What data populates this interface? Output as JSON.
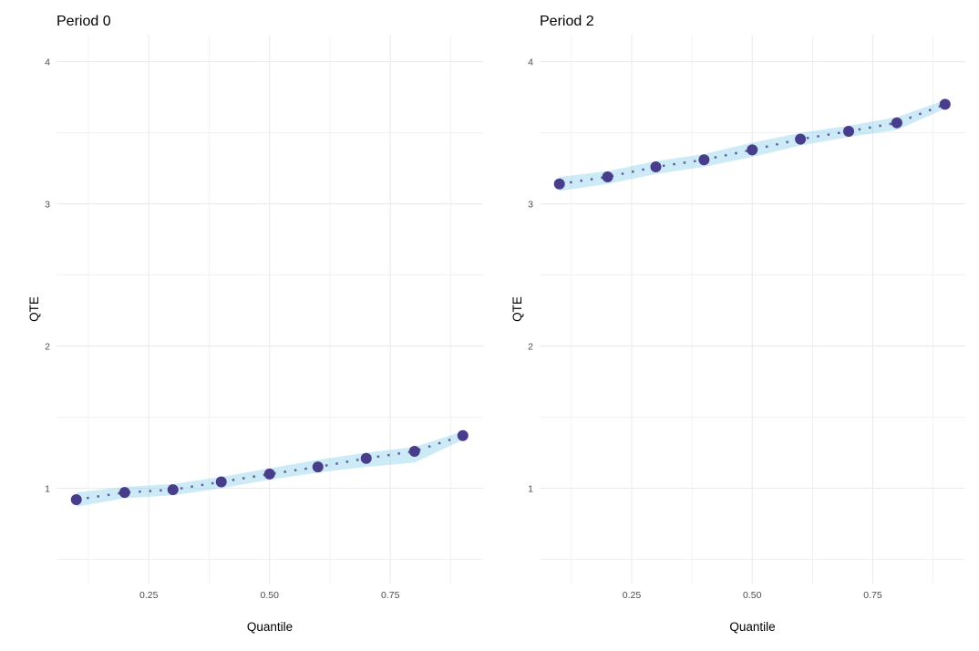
{
  "chart_data": [
    {
      "type": "line",
      "title": "Period 0",
      "xlabel": "Quantile",
      "ylabel": "QTE",
      "xlim": [
        0.059,
        0.942
      ],
      "ylim": [
        0.33,
        4.19
      ],
      "xticks": [
        "0.25",
        "0.50",
        "0.75"
      ],
      "xtick_values": [
        0.25,
        0.5,
        0.75
      ],
      "yticks": [
        "1",
        "2",
        "3",
        "4"
      ],
      "ytick_values": [
        1,
        2,
        3,
        4
      ],
      "grid": true,
      "x": [
        0.1,
        0.2,
        0.3,
        0.4,
        0.5,
        0.6,
        0.7,
        0.8,
        0.9
      ],
      "y": [
        0.92,
        0.97,
        0.99,
        1.045,
        1.1,
        1.15,
        1.21,
        1.26,
        1.37
      ],
      "lower": [
        0.87,
        0.93,
        0.95,
        1.0,
        1.06,
        1.11,
        1.15,
        1.18,
        1.34
      ],
      "upper": [
        0.97,
        1.01,
        1.03,
        1.08,
        1.14,
        1.2,
        1.25,
        1.29,
        1.4
      ]
    },
    {
      "type": "line",
      "title": "Period 2",
      "xlabel": "Quantile",
      "ylabel": "QTE",
      "xlim": [
        0.059,
        0.942
      ],
      "ylim": [
        0.33,
        4.19
      ],
      "xticks": [
        "0.25",
        "0.50",
        "0.75"
      ],
      "xtick_values": [
        0.25,
        0.5,
        0.75
      ],
      "yticks": [
        "1",
        "2",
        "3",
        "4"
      ],
      "ytick_values": [
        1,
        2,
        3,
        4
      ],
      "grid": true,
      "x": [
        0.1,
        0.2,
        0.3,
        0.4,
        0.5,
        0.6,
        0.7,
        0.8,
        0.9
      ],
      "y": [
        3.14,
        3.19,
        3.26,
        3.31,
        3.38,
        3.455,
        3.51,
        3.57,
        3.7
      ],
      "lower": [
        3.09,
        3.14,
        3.21,
        3.26,
        3.33,
        3.41,
        3.47,
        3.52,
        3.67
      ],
      "upper": [
        3.19,
        3.23,
        3.3,
        3.35,
        3.43,
        3.5,
        3.55,
        3.61,
        3.73
      ]
    }
  ],
  "colors": {
    "point": "#483d8b",
    "band": "#87ceeb",
    "line": "#483d8b",
    "grid": "#ebebeb"
  }
}
